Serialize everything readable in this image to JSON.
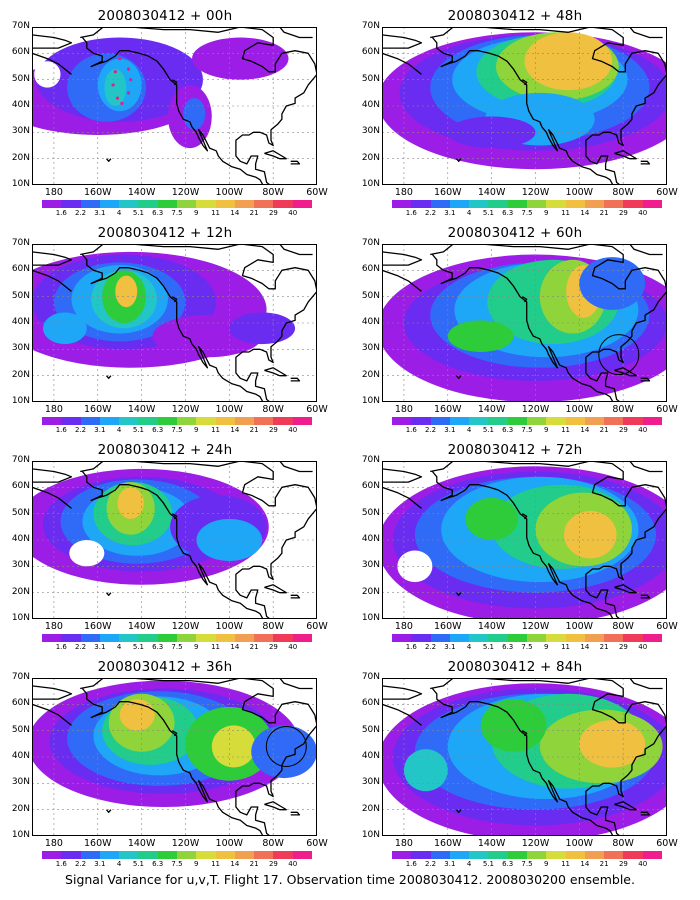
{
  "caption": "Signal Variance for u,v,T. Flight 17. Observation time 2008030412. 2008030200 ensemble.",
  "lat_labels": [
    "70N",
    "60N",
    "50N",
    "40N",
    "30N",
    "20N",
    "10N"
  ],
  "lon_labels": [
    "180",
    "160W",
    "140W",
    "120W",
    "100W",
    "80W",
    "60W"
  ],
  "colorbar": {
    "labels": [
      "1.6",
      "2.2",
      "3.1",
      "4",
      "5.1",
      "6.3",
      "7.5",
      "9",
      "11",
      "14",
      "21",
      "29",
      "40"
    ],
    "colors": [
      "#9c1ee6",
      "#6a2cf0",
      "#2f6bf7",
      "#1ea6f7",
      "#22c6c6",
      "#22cc8a",
      "#2ecc3a",
      "#8fd43a",
      "#d6dc3a",
      "#f0c040",
      "#f0a050",
      "#f07058",
      "#f03a5a",
      "#f01e8c"
    ]
  },
  "panels": [
    {
      "title": "2008030412 + 00h",
      "forecast_hour": 0,
      "has_ring": false,
      "has_dotted_track": true
    },
    {
      "title": "2008030412 + 12h",
      "forecast_hour": 12,
      "has_ring": false,
      "has_dotted_track": false
    },
    {
      "title": "2008030412 + 24h",
      "forecast_hour": 24,
      "has_ring": false,
      "has_dotted_track": false
    },
    {
      "title": "2008030412 + 36h",
      "forecast_hour": 36,
      "has_ring": true,
      "has_dotted_track": false
    },
    {
      "title": "2008030412 + 48h",
      "forecast_hour": 48,
      "has_ring": false,
      "has_dotted_track": false
    },
    {
      "title": "2008030412 + 60h",
      "forecast_hour": 60,
      "has_ring": true,
      "has_dotted_track": false
    },
    {
      "title": "2008030412 + 72h",
      "forecast_hour": 72,
      "has_ring": false,
      "has_dotted_track": false
    },
    {
      "title": "2008030412 + 84h",
      "forecast_hour": 84,
      "has_ring": false,
      "has_dotted_track": false
    }
  ]
}
